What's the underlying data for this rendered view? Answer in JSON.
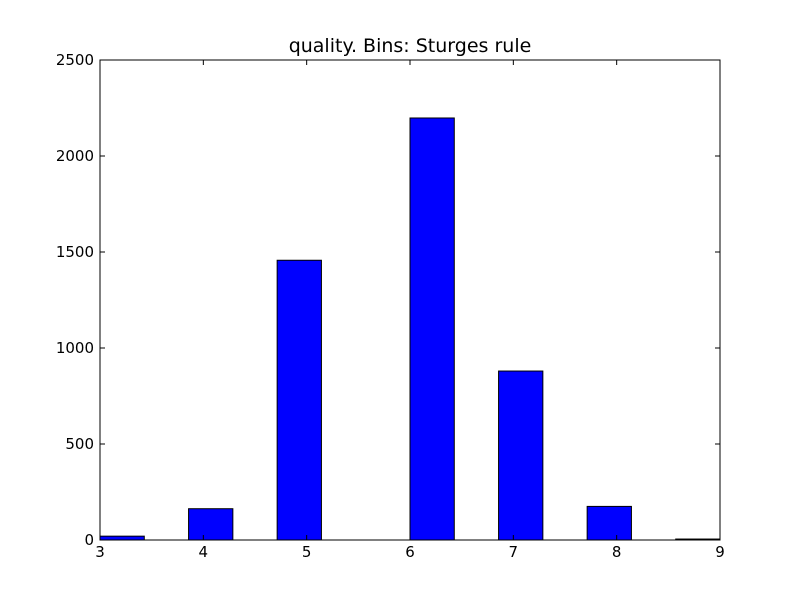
{
  "chart_data": {
    "type": "bar",
    "title": "quality. Bins: Sturges rule",
    "xlabel": "",
    "ylabel": "",
    "xlim": [
      3,
      9
    ],
    "ylim": [
      0,
      2500
    ],
    "x_ticks": [
      3,
      4,
      5,
      6,
      7,
      8,
      9
    ],
    "y_ticks": [
      0,
      500,
      1000,
      1500,
      2000,
      2500
    ],
    "grid": false,
    "bar_color": "#0000ff",
    "bars": [
      {
        "x0": 3.0,
        "x1": 3.4286,
        "value": 20
      },
      {
        "x0": 3.8571,
        "x1": 4.2857,
        "value": 163
      },
      {
        "x0": 4.7143,
        "x1": 5.1429,
        "value": 1457
      },
      {
        "x0": 5.5714,
        "x1": 6.0,
        "value": 0
      },
      {
        "x0": 6.0,
        "x1": 6.4286,
        "value": 2198
      },
      {
        "x0": 6.8571,
        "x1": 7.2857,
        "value": 880
      },
      {
        "x0": 7.7143,
        "x1": 8.1429,
        "value": 175
      },
      {
        "x0": 8.5714,
        "x1": 9.0,
        "value": 5
      }
    ]
  }
}
